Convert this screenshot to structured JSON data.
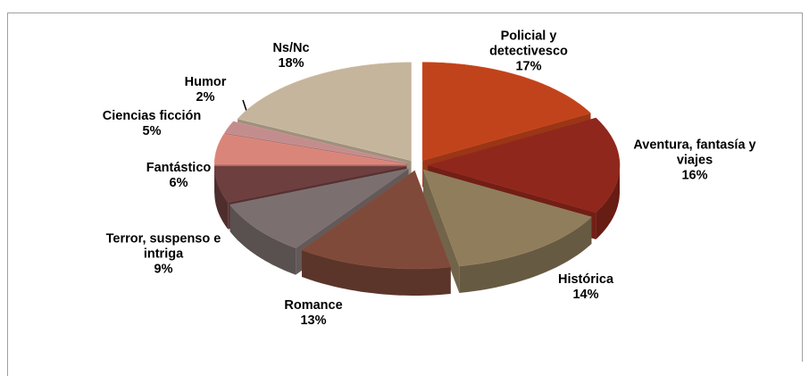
{
  "chart_data": {
    "type": "pie3d",
    "categories": [
      "Policial y detectivesco",
      "Aventura, fantasía y viajes",
      "Histórica",
      "Romance",
      "Terror, suspenso e intriga",
      "Fantástico",
      "Ciencias ficción",
      "Humor",
      "Ns/Nc"
    ],
    "values": [
      17,
      16,
      14,
      13,
      9,
      6,
      5,
      2,
      18
    ],
    "value_labels": [
      "17%",
      "16%",
      "14%",
      "13%",
      "9%",
      "6%",
      "5%",
      "2%",
      "18%"
    ],
    "colors": [
      "#c1431b",
      "#8f271c",
      "#8f7d5c",
      "#7f4a3a",
      "#7c6f6f",
      "#6d3f3f",
      "#d9857a",
      "#c48d8d",
      "#c5b59c"
    ]
  }
}
